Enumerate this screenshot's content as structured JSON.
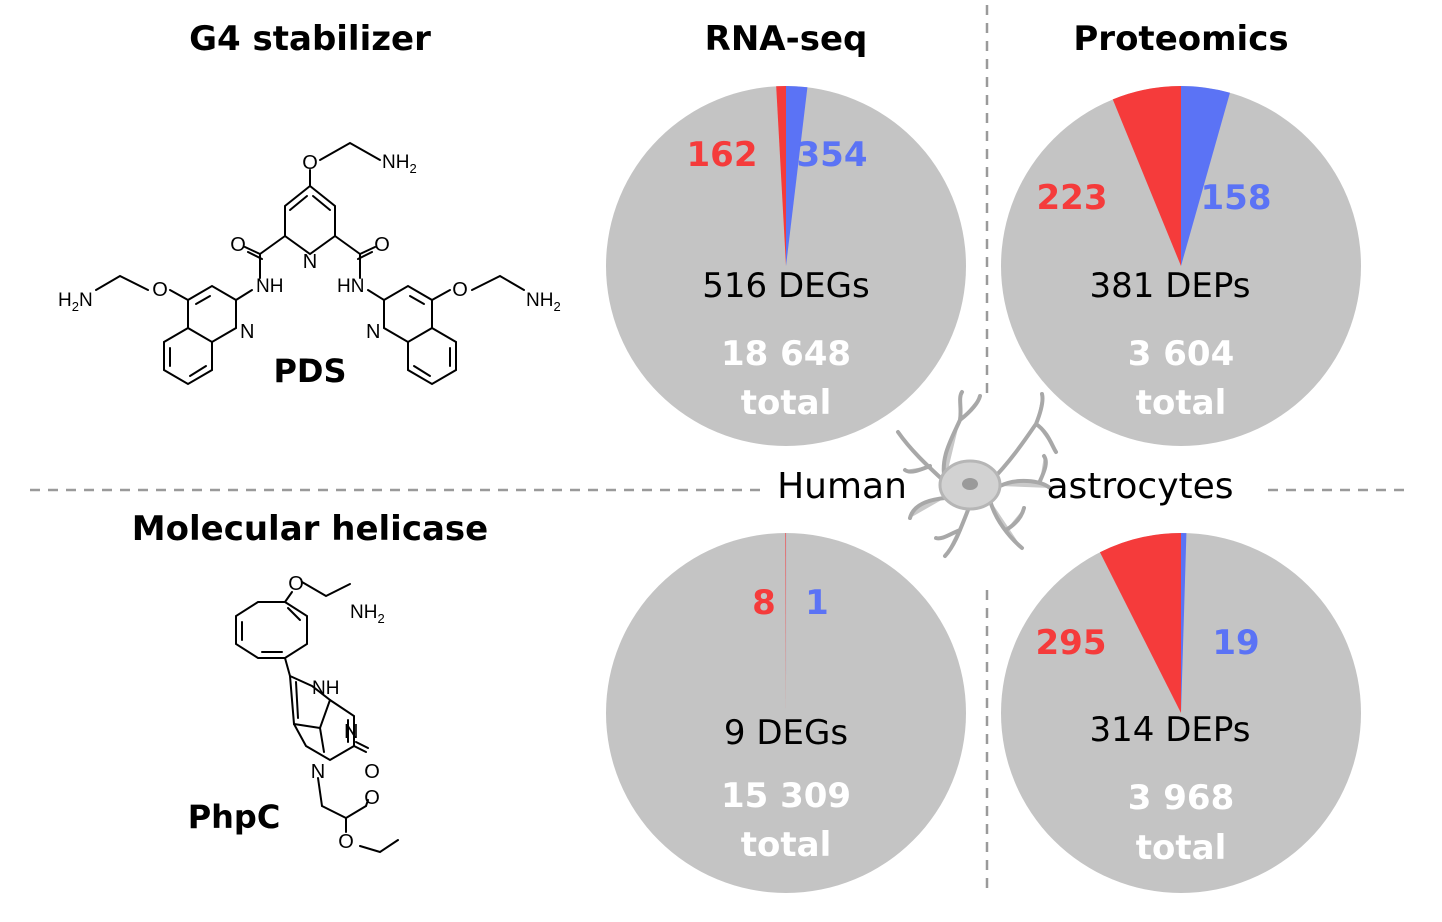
{
  "left_panel": {
    "top_heading": "G4 stabilizer",
    "top_compound": "PDS",
    "bottom_heading": "Molecular helicase",
    "bottom_compound": "PhpC"
  },
  "center_label": {
    "left_word": "Human",
    "right_word": "astrocytes"
  },
  "chemistry_labels": {
    "nh2": "NH",
    "nh2_sub": "2",
    "h2n": "H",
    "h2n_sub": "2",
    "h2n_n": "N",
    "o": "O",
    "n": "N",
    "nh": "NH",
    "hn": "HN"
  },
  "colors": {
    "background_slice": "#c4c4c4",
    "up_red": "#f53b3b",
    "down_blue": "#5b73f5",
    "total_text": "#ffffff",
    "divider": "#9a9a9a"
  },
  "chart_data": [
    {
      "type": "pie",
      "title": "RNA-seq",
      "compound": "PDS",
      "red_value": 162,
      "blue_value": 354,
      "summary_label": "516 DEGs",
      "total_number": "18 648",
      "total_word": "total",
      "total": 18648
    },
    {
      "type": "pie",
      "title": "Proteomics",
      "compound": "PDS",
      "red_value": 223,
      "blue_value": 158,
      "summary_label": "381 DEPs",
      "total_number": "3 604",
      "total_word": "total",
      "total": 3604
    },
    {
      "type": "pie",
      "title": "",
      "compound": "PhpC",
      "red_value": 8,
      "blue_value": 1,
      "summary_label": "9 DEGs",
      "total_number": "15 309",
      "total_word": "total",
      "total": 15309
    },
    {
      "type": "pie",
      "title": "",
      "compound": "PhpC",
      "red_value": 295,
      "blue_value": 19,
      "summary_label": "314 DEPs",
      "total_number": "3 968",
      "total_word": "total",
      "total": 3968
    }
  ]
}
